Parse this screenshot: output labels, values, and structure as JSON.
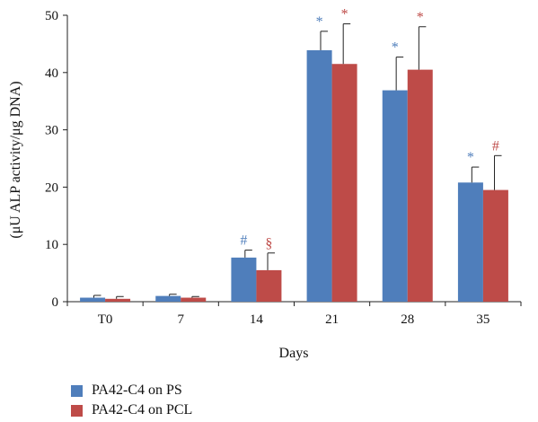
{
  "chart_data": {
    "type": "bar",
    "title": "",
    "xlabel": "Days",
    "ylabel": "(μU ALP activity/μg DNA)",
    "ylim": [
      0,
      50
    ],
    "yticks": [
      "0",
      "10",
      "20",
      "30",
      "40",
      "50"
    ],
    "categories": [
      "T0",
      "7",
      "14",
      "21",
      "28",
      "35"
    ],
    "legend_position": "bottom-left",
    "grid": false,
    "series": [
      {
        "name": "PA42-C4 on PS",
        "color": "#4F7EBB",
        "values": [
          0.7,
          1.0,
          7.7,
          43.9,
          36.9,
          20.8
        ],
        "errors": [
          0.4,
          0.3,
          1.3,
          3.3,
          5.8,
          2.7
        ],
        "annotations": [
          "",
          "",
          "#",
          "*",
          "*",
          "*"
        ]
      },
      {
        "name": "PA42-C4 on PCL",
        "color": "#BE4B48",
        "values": [
          0.5,
          0.7,
          5.5,
          41.5,
          40.5,
          19.5
        ],
        "errors": [
          0.4,
          0.2,
          3.0,
          7.0,
          7.5,
          6.0
        ],
        "annotations": [
          "",
          "",
          "§",
          "*",
          "*",
          "#"
        ]
      }
    ]
  }
}
